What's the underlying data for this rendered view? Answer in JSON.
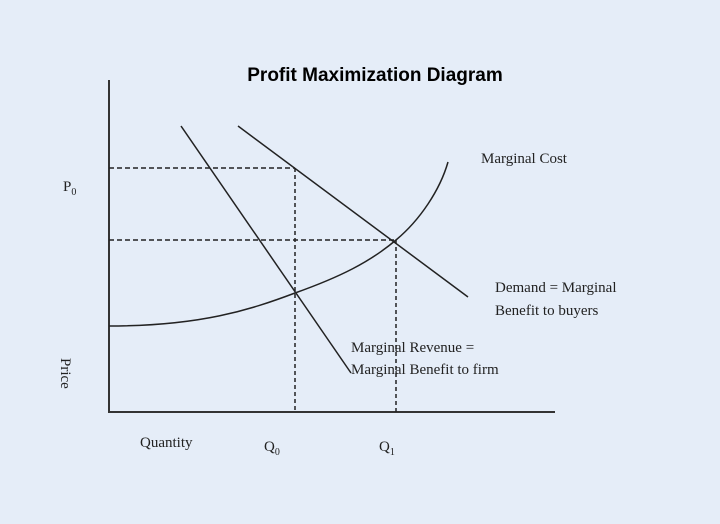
{
  "title": "Profit Maximization Diagram",
  "labels": {
    "marginal_cost": "Marginal Cost",
    "demand_line1": "Demand = Marginal",
    "demand_line2": "Benefit to buyers",
    "mr_line1": "Marginal Revenue =",
    "mr_line2": "Marginal Benefit to firm",
    "p0": "P",
    "p0_sub": "0",
    "price": "Price",
    "quantity": "Quantity",
    "q0": "Q",
    "q0_sub": "0",
    "q1": "Q",
    "q1_sub": "1"
  },
  "colors": {
    "background": "#e5edf8",
    "lines": "#222222"
  }
}
